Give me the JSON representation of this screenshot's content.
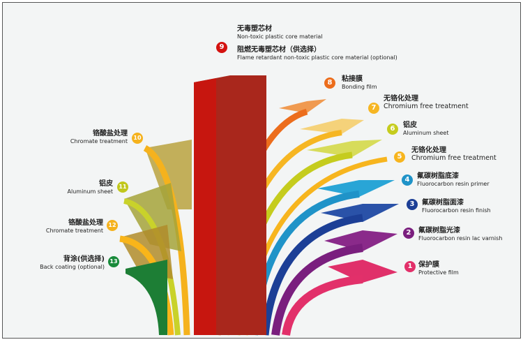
{
  "layers": [
    {
      "num": "1",
      "cn": "保护膜",
      "en": "Protective film",
      "color": "#e2306a"
    },
    {
      "num": "2",
      "cn": "氟碳树脂光漆",
      "en": "Fluorocarbon resin lac varnish",
      "color": "#7a1f7e"
    },
    {
      "num": "3",
      "cn": "氟碳树脂面漆",
      "en": "Fluorocarbon resin finish",
      "color": "#1c3f96"
    },
    {
      "num": "4",
      "cn": "氟碳树脂底漆",
      "en": "Fluorocarbon resin primer",
      "color": "#1f93c8"
    },
    {
      "num": "5",
      "cn": "无铬化处理",
      "en": "Chromium free treatment",
      "color": "#f7b51e"
    },
    {
      "num": "6",
      "cn": "铝皮",
      "en": "Aluminum sheet",
      "color": "#c5cc1e"
    },
    {
      "num": "7",
      "cn": "无铬化处理",
      "en": "Chromium free treatment",
      "color": "#f6b623"
    },
    {
      "num": "8",
      "cn": "粘接膜",
      "en": "Bonding film",
      "color": "#ec6d1c"
    },
    {
      "num": "9",
      "cn": "无毒塑芯材",
      "en": "Non-toxic plastic core material",
      "cn2": "阻燃无毒塑芯材（供选择）",
      "en2": "Flame retardant non-toxic plastic core material (optional)",
      "color": "#d4120f"
    },
    {
      "num": "10",
      "cn": "铬酸盐处理",
      "en": "Chromate treatment",
      "color": "#f5b21d"
    },
    {
      "num": "11",
      "cn": "铝皮",
      "en": "Aluminum sheet",
      "color": "#c1c71c"
    },
    {
      "num": "12",
      "cn": "铬酸盐处理",
      "en": "Chromate treatment",
      "color": "#f5b21d"
    },
    {
      "num": "13",
      "cn": "背涂(供选择)",
      "en": "Back coating (optional)",
      "color": "#188a3a"
    }
  ]
}
